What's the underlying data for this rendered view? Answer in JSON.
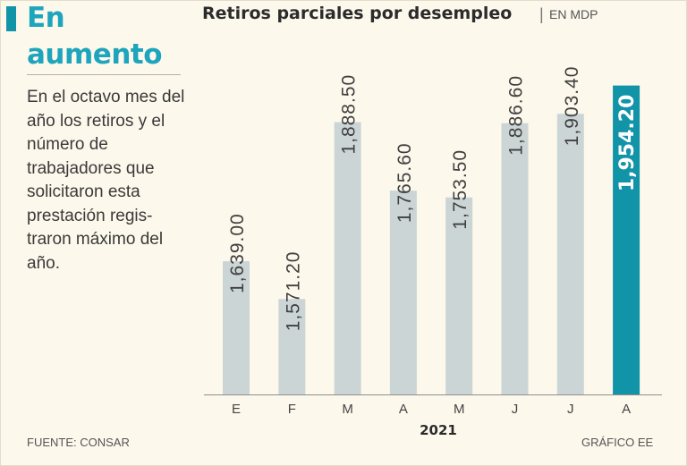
{
  "headline": {
    "line1": "En",
    "line2": "aumento"
  },
  "description": "En el octavo mes del año los retiros y el número de trabajadores que solicitaron esta prestación regis-traron máximo del año.",
  "source": "FUENTE: CONSAR",
  "credit": "GRÁFICO EE",
  "colors": {
    "accent": "#1193a8",
    "bar": "#ccd5d5",
    "highlight": "#1193a8",
    "background": "#fdf8ec"
  },
  "chart_data": {
    "type": "bar",
    "title": "Retiros parciales por desempleo",
    "unit": "EN MDP",
    "categories": [
      "E",
      "F",
      "M",
      "A",
      "M",
      "J",
      "J",
      "A"
    ],
    "values": [
      1639.0,
      1571.2,
      1888.5,
      1765.6,
      1753.5,
      1886.6,
      1903.4,
      1954.2
    ],
    "value_labels": [
      "1,639.00",
      "1,571.20",
      "1,888.50",
      "1,765.60",
      "1,753.50",
      "1,886.60",
      "1,903.40",
      "1,954.20"
    ],
    "highlight_index": 7,
    "xlabel": "2021",
    "ylabel": "",
    "ylim": [
      1400,
      1960
    ],
    "grid": false
  }
}
